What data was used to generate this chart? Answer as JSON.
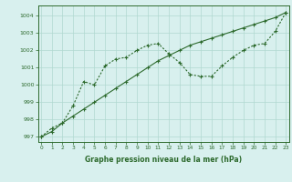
{
  "line1_x": [
    0,
    1,
    2,
    3,
    4,
    5,
    6,
    7,
    8,
    9,
    10,
    11,
    12,
    13,
    14,
    15,
    16,
    17,
    18,
    19,
    20,
    21,
    22,
    23
  ],
  "line1_y": [
    997.0,
    997.3,
    997.8,
    998.2,
    998.6,
    999.0,
    999.4,
    999.8,
    1000.2,
    1000.6,
    1001.0,
    1001.4,
    1001.7,
    1002.0,
    1002.3,
    1002.5,
    1002.7,
    1002.9,
    1003.1,
    1003.3,
    1003.5,
    1003.7,
    1003.9,
    1004.2
  ],
  "line2_x": [
    0,
    1,
    2,
    3,
    4,
    5,
    6,
    7,
    8,
    9,
    10,
    11,
    12,
    13,
    14,
    15,
    16,
    17,
    18,
    19,
    20,
    21,
    22,
    23
  ],
  "line2_y": [
    997.0,
    997.5,
    997.8,
    998.8,
    1000.2,
    1000.0,
    1001.1,
    1001.5,
    1001.6,
    1002.0,
    1002.3,
    1002.4,
    1001.8,
    1001.3,
    1000.6,
    1000.5,
    1000.5,
    1001.1,
    1001.6,
    1002.0,
    1002.3,
    1002.4,
    1003.1,
    1004.2
  ],
  "line_color": "#2d6a2d",
  "bg_color": "#d8f0ee",
  "grid_color": "#b0d8d0",
  "xlabel": "Graphe pression niveau de la mer (hPa)",
  "xticks": [
    0,
    1,
    2,
    3,
    4,
    5,
    6,
    7,
    8,
    9,
    10,
    11,
    12,
    13,
    14,
    15,
    16,
    17,
    18,
    19,
    20,
    21,
    22,
    23
  ],
  "yticks": [
    997,
    998,
    999,
    1000,
    1001,
    1002,
    1003,
    1004
  ],
  "ylim": [
    996.7,
    1004.6
  ],
  "xlim": [
    -0.3,
    23.3
  ]
}
